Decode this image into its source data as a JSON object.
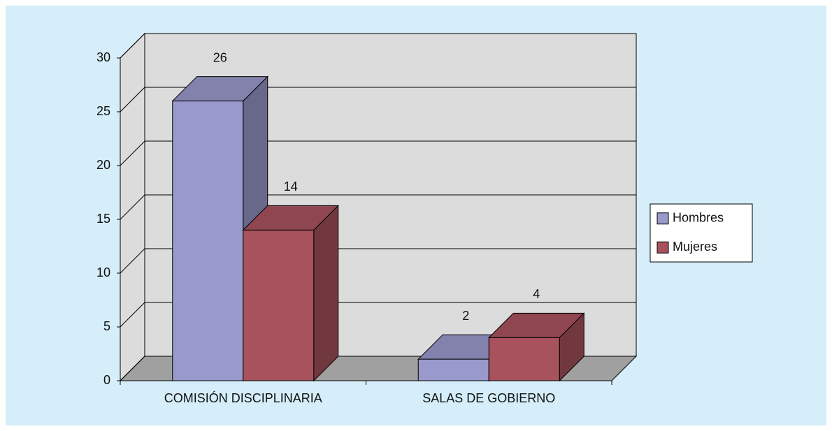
{
  "chart_data": {
    "type": "bar3d",
    "categories": [
      "COMISIÓN DISCIPLINARIA",
      "SALAS DE GOBIERNO"
    ],
    "series": [
      {
        "name": "Hombres",
        "color": "#9999cc",
        "values": [
          26,
          2
        ]
      },
      {
        "name": "Mujeres",
        "color": "#a8525e",
        "values": [
          14,
          4
        ]
      }
    ],
    "ylim": [
      0,
      30
    ],
    "yticks": [
      0,
      5,
      10,
      15,
      20,
      25,
      30
    ],
    "grid": true,
    "legend": "right"
  }
}
